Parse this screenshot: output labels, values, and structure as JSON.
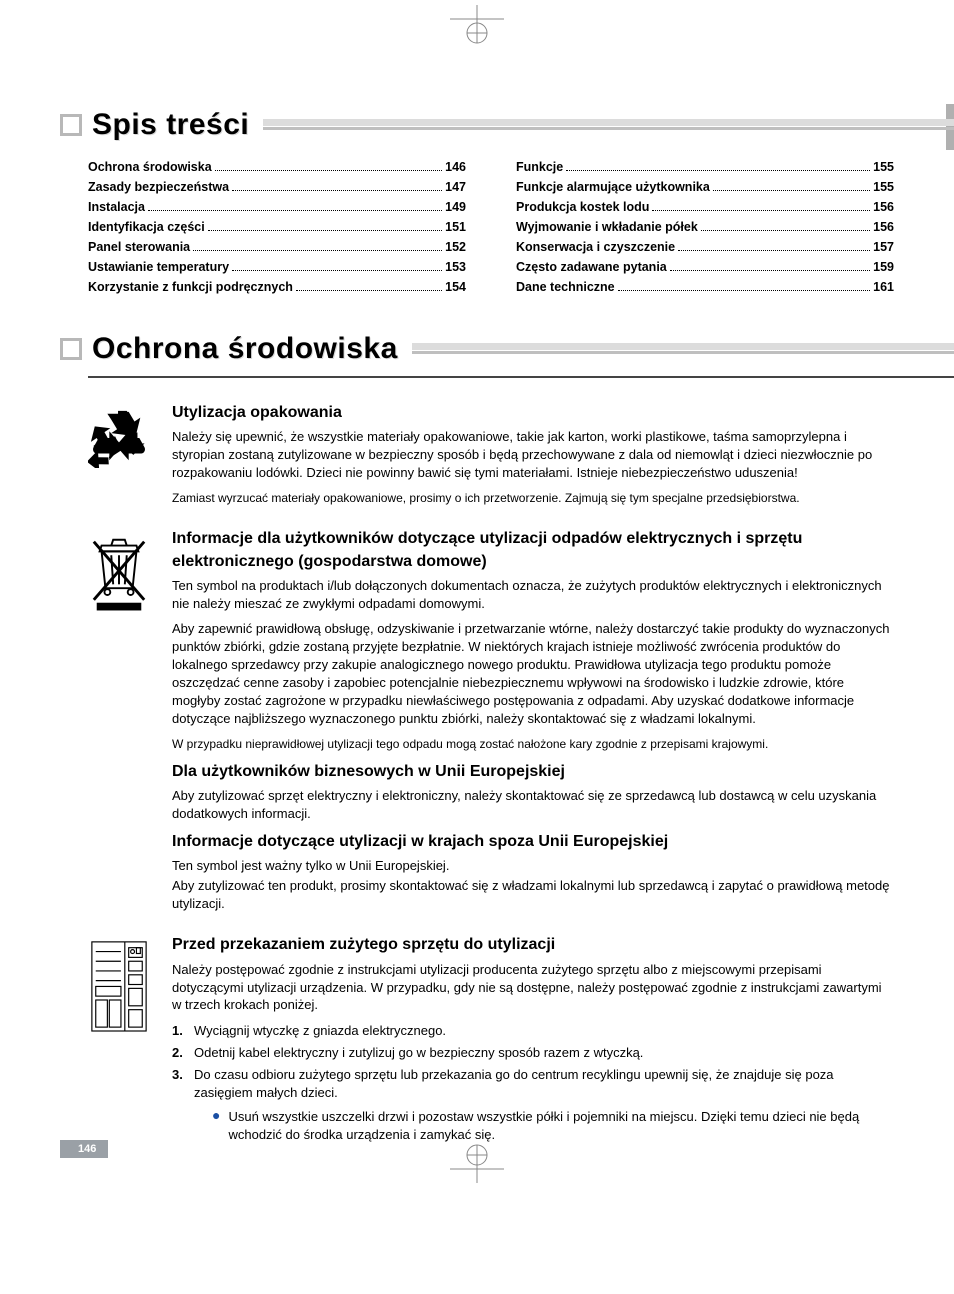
{
  "pageNumber": "146",
  "headings": {
    "toc": "Spis treści",
    "env": "Ochrona środowiska"
  },
  "toc": {
    "left": [
      {
        "label": "Ochrona środowiska",
        "page": "146"
      },
      {
        "label": "Zasady bezpieczeństwa",
        "page": "147"
      },
      {
        "label": "Instalacja",
        "page": "149"
      },
      {
        "label": "Identyfikacja części",
        "page": "151"
      },
      {
        "label": "Panel sterowania",
        "page": "152"
      },
      {
        "label": "Ustawianie temperatury",
        "page": "153"
      },
      {
        "label": "Korzystanie z funkcji podręcznych",
        "page": "154"
      }
    ],
    "right": [
      {
        "label": "Funkcje",
        "page": "155"
      },
      {
        "label": "Funkcje alarmujące użytkownika",
        "page": "155"
      },
      {
        "label": "Produkcja kostek lodu",
        "page": "156"
      },
      {
        "label": "Wyjmowanie i wkładanie półek",
        "page": "156"
      },
      {
        "label": "Konserwacja i czyszczenie",
        "page": "157"
      },
      {
        "label": "Często zadawane pytania",
        "page": "159"
      },
      {
        "label": "Dane techniczne",
        "page": "161"
      }
    ]
  },
  "sections": {
    "packaging": {
      "title": "Utylizacja opakowania",
      "p1": "Należy się upewnić, że wszystkie materiały opakowaniowe, takie jak karton, worki plastikowe, taśma samoprzylepna i styropian zostaną zutylizowane w bezpieczny sposób i będą przechowywane z dala od niemowląt i dzieci niezwłocznie po rozpakowaniu lodówki. Dzieci nie powinny bawić się tymi materiałami. Istnieje niebezpieczeństwo uduszenia!",
      "p2": "Zamiast wyrzucać materiały opakowaniowe, prosimy o ich przetworzenie. Zajmują się tym specjalne przedsiębiorstwa."
    },
    "weee": {
      "title": "Informacje dla użytkowników dotyczące utylizacji odpadów elektrycznych i sprzętu elektronicznego (gospodarstwa domowe)",
      "p1": "Ten symbol na produktach i/lub dołączonych dokumentach oznacza, że zużytych produktów elektrycznych i elektronicznych nie należy mieszać ze zwykłymi odpadami domowymi.",
      "p2": "Aby zapewnić prawidłową obsługę, odzyskiwanie i przetwarzanie wtórne, należy dostarczyć takie produkty do wyznaczonych punktów zbiórki, gdzie zostaną przyjęte bezpłatnie. W niektórych krajach istnieje możliwość zwrócenia produktów do lokalnego sprzedawcy przy zakupie analogicznego nowego produktu. Prawidłowa utylizacja tego produktu pomoże oszczędzać cenne zasoby i zapobiec potencjalnie niebezpiecznemu wpływowi na środowisko i ludzkie zdrowie, które mogłyby zostać zagrożone w przypadku niewłaściwego postępowania z odpadami. Aby uzyskać dodatkowe informacje dotyczące najbliższego wyznaczonego punktu zbiórki, należy skontaktować się z władzami lokalnymi.",
      "p3": "W przypadku nieprawidłowej utylizacji tego odpadu mogą zostać nałożone kary zgodnie z przepisami krajowymi."
    },
    "business": {
      "title": "Dla użytkowników biznesowych w Unii Europejskiej",
      "p1": "Aby zutylizować sprzęt elektryczny i elektroniczny, należy skontaktować się ze sprzedawcą lub dostawcą w celu uzyskania dodatkowych informacji."
    },
    "nonEu": {
      "title": "Informacje dotyczące utylizacji w krajach spoza Unii Europejskiej",
      "p1": "Ten symbol jest ważny tylko w Unii Europejskiej.",
      "p2": "Aby zutylizować ten produkt, prosimy skontaktować się z władzami lokalnymi lub sprzedawcą i zapytać o prawidłową metodę utylizacji."
    },
    "before": {
      "title": "Przed przekazaniem zużytego sprzętu do utylizacji",
      "intro": "Należy postępować zgodnie z instrukcjami utylizacji producenta zużytego sprzętu albo z miejscowymi przepisami dotyczącymi utylizacji urządzenia. W przypadku, gdy nie są dostępne, należy postępować zgodnie z instrukcjami zawartymi w trzech krokach poniżej.",
      "steps": [
        "Wyciągnij wtyczkę z gniazda elektrycznego.",
        "Odetnij kabel elektryczny i zutylizuj go w bezpieczny sposób razem z wtyczką.",
        "Do czasu odbioru zużytego sprzętu lub przekazania go do centrum recyklingu upewnij się, że znajduje się poza zasięgiem małych dzieci."
      ],
      "bullet": "Usuń wszystkie uszczelki drzwi i pozostaw wszystkie półki i pojemniki na miejscu. Dzięki temu dzieci nie będą wchodzić do środka urządzenia i zamykać się."
    }
  }
}
